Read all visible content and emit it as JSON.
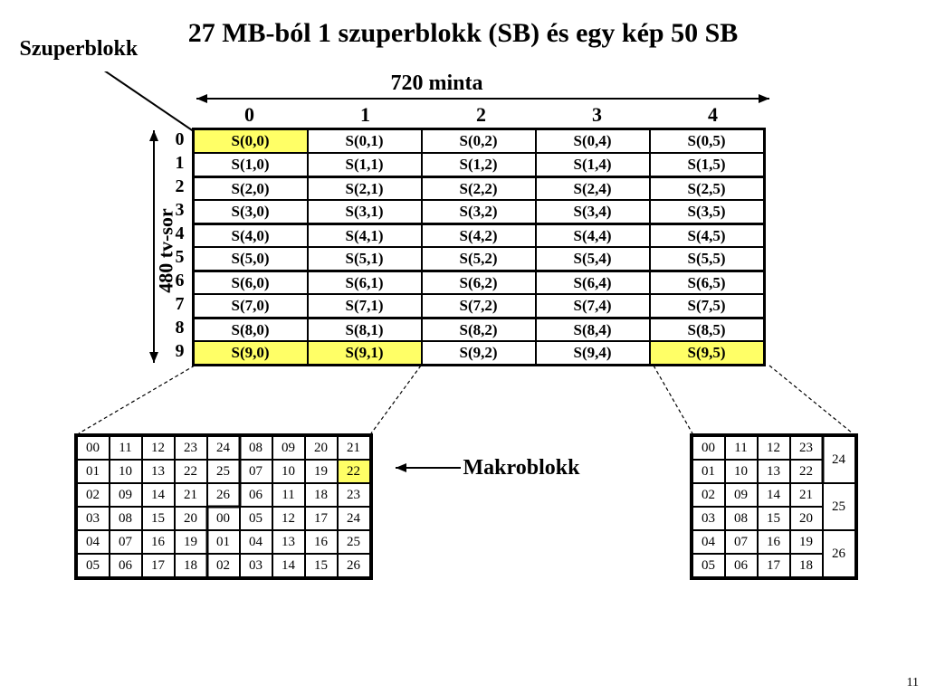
{
  "title": "27 MB-ból 1 szuperblokk (SB) és egy kép 50 SB",
  "labels": {
    "szuperblokk": "Szuperblokk",
    "top": "720 minta",
    "left": "480 tv-sor",
    "makroblokk": "Makroblokk"
  },
  "main_table": {
    "type": "table",
    "col_headers": [
      "0",
      "1",
      "2",
      "3",
      "4"
    ],
    "row_headers": [
      "0",
      "1",
      "2",
      "3",
      "4",
      "5",
      "6",
      "7",
      "8",
      "9"
    ],
    "rows": [
      [
        "S(0,0)",
        "S(0,1)",
        "S(0,2)",
        "S(0,4)",
        "S(0,5)"
      ],
      [
        "S(1,0)",
        "S(1,1)",
        "S(1,2)",
        "S(1,4)",
        "S(1,5)"
      ],
      [
        "S(2,0)",
        "S(2,1)",
        "S(2,2)",
        "S(2,4)",
        "S(2,5)"
      ],
      [
        "S(3,0)",
        "S(3,1)",
        "S(3,2)",
        "S(3,4)",
        "S(3,5)"
      ],
      [
        "S(4,0)",
        "S(4,1)",
        "S(4,2)",
        "S(4,4)",
        "S(4,5)"
      ],
      [
        "S(5,0)",
        "S(5,1)",
        "S(5,2)",
        "S(5,4)",
        "S(5,5)"
      ],
      [
        "S(6,0)",
        "S(6,1)",
        "S(6,2)",
        "S(6,4)",
        "S(6,5)"
      ],
      [
        "S(7,0)",
        "S(7,1)",
        "S(7,2)",
        "S(7,4)",
        "S(7,5)"
      ],
      [
        "S(8,0)",
        "S(8,1)",
        "S(8,2)",
        "S(8,4)",
        "S(8,5)"
      ],
      [
        "S(9,0)",
        "S(9,1)",
        "S(9,2)",
        "S(9,4)",
        "S(9,5)"
      ]
    ],
    "highlight_cells": [
      [
        0,
        0
      ],
      [
        9,
        0
      ],
      [
        9,
        1
      ],
      [
        9,
        4
      ]
    ],
    "thick_row_tops": [
      2,
      4,
      6,
      8
    ],
    "highlight_color": "#ffff66",
    "border_color": "#000000",
    "font_size": 17
  },
  "bottom_left": {
    "type": "table",
    "rows": [
      [
        "00",
        "11",
        "12",
        "23",
        "24",
        "08",
        "09",
        "20",
        "21"
      ],
      [
        "01",
        "10",
        "13",
        "22",
        "25",
        "07",
        "10",
        "19",
        "22"
      ],
      [
        "02",
        "09",
        "14",
        "21",
        "26",
        "06",
        "11",
        "18",
        "23"
      ],
      [
        "03",
        "08",
        "15",
        "20",
        "00",
        "05",
        "12",
        "17",
        "24"
      ],
      [
        "04",
        "07",
        "16",
        "19",
        "01",
        "04",
        "13",
        "16",
        "25"
      ],
      [
        "05",
        "06",
        "17",
        "18",
        "02",
        "03",
        "14",
        "15",
        "26"
      ]
    ],
    "highlight_cell": [
      1,
      8
    ],
    "highlight_color": "#ffff66"
  },
  "bottom_right": {
    "type": "table",
    "main_rows": [
      [
        "00",
        "11",
        "12",
        "23"
      ],
      [
        "01",
        "10",
        "13",
        "22"
      ],
      [
        "02",
        "09",
        "14",
        "21"
      ],
      [
        "03",
        "08",
        "15",
        "20"
      ],
      [
        "04",
        "07",
        "16",
        "19"
      ],
      [
        "05",
        "06",
        "17",
        "18"
      ]
    ],
    "tall_col": [
      "24",
      "25",
      "26"
    ]
  },
  "page_number": "11",
  "colors": {
    "background": "#ffffff",
    "text": "#000000",
    "highlight": "#ffff66",
    "border": "#000000"
  }
}
